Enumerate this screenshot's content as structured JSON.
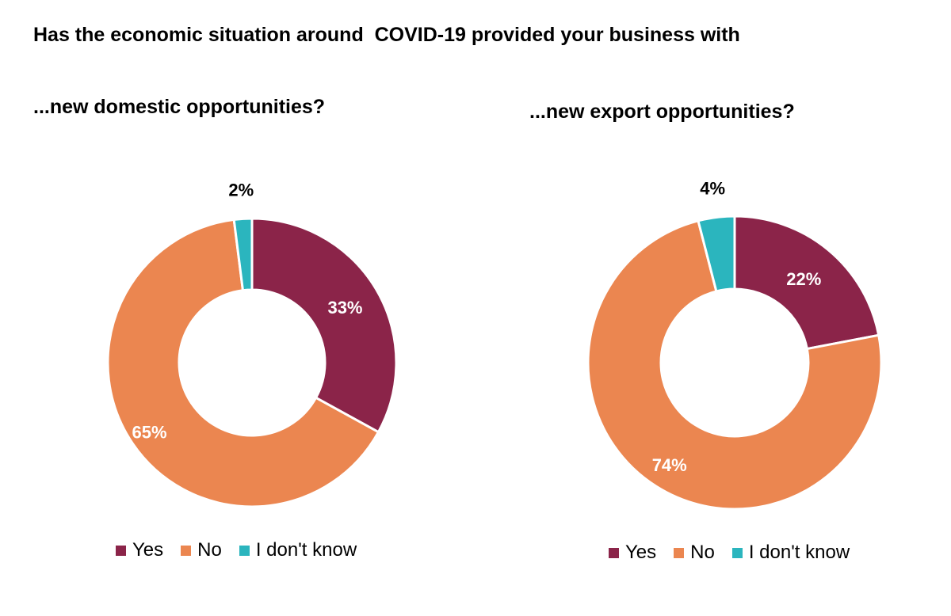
{
  "title": "Has the economic situation around  COVID-19 provided your business with",
  "chart_data": [
    {
      "type": "pie",
      "subtitle": "...new domestic opportunities?",
      "categories": [
        "Yes",
        "No",
        "I don't know"
      ],
      "values": [
        33,
        65,
        2
      ],
      "value_labels": [
        "33%",
        "65%",
        "2%"
      ],
      "colors": [
        "#8B2449",
        "#EB8650",
        "#2BB5BE"
      ],
      "legend": "bottom"
    },
    {
      "type": "pie",
      "subtitle": "...new export opportunities?",
      "categories": [
        "Yes",
        "No",
        "I don't know"
      ],
      "values": [
        22,
        74,
        4
      ],
      "value_labels": [
        "22%",
        "74%",
        "4%"
      ],
      "colors": [
        "#8B2449",
        "#EB8650",
        "#2BB5BE"
      ],
      "legend": "bottom"
    }
  ]
}
